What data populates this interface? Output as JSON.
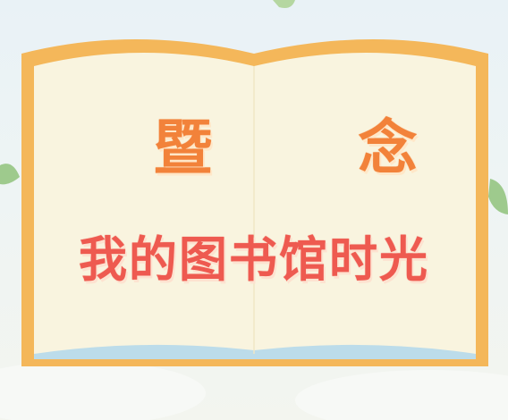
{
  "title_line_1": "暨 念",
  "title_line_2": "我的图书馆时光",
  "colors": {
    "background": "#ecf3f4",
    "book_border": "#f4b75a",
    "book_page": "#f9f4df",
    "title_1": "#f2823a",
    "title_2": "#ee5a50",
    "leaf": "#8fc27a"
  },
  "icons": [
    "open-book-icon",
    "leaf-icon"
  ]
}
